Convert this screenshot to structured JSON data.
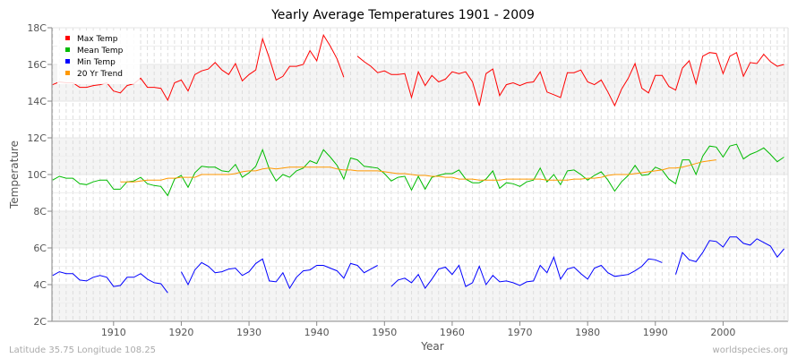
{
  "chart_data": {
    "type": "line",
    "title": "Yearly Average Temperatures 1901 - 2009",
    "xlabel": "Year",
    "ylabel": "Temperature",
    "xlim": [
      1901,
      2009
    ],
    "ylim": [
      2,
      18
    ],
    "x_ticks": [
      1910,
      1920,
      1930,
      1940,
      1950,
      1960,
      1970,
      1980,
      1990,
      2000
    ],
    "y_ticks": [
      "2C",
      "4C",
      "6C",
      "8C",
      "10C",
      "12C",
      "14C",
      "16C",
      "18C"
    ],
    "grid": true,
    "legend_placement": "top-left",
    "series": [
      {
        "name": "Max Temp",
        "color": "#ff0000",
        "start_year": 1901,
        "values": [
          14.9,
          15.05,
          15.0,
          15.0,
          14.75,
          14.75,
          14.85,
          14.9,
          15.0,
          14.55,
          14.45,
          14.85,
          14.95,
          15.25,
          14.75,
          14.75,
          14.7,
          14.05,
          15.0,
          15.15,
          14.55,
          15.45,
          15.65,
          15.75,
          16.1,
          15.7,
          15.45,
          16.05,
          15.1,
          15.45,
          15.7,
          17.4,
          16.35,
          15.15,
          15.35,
          15.9,
          15.9,
          16.0,
          16.75,
          16.2,
          17.6,
          17.0,
          16.3,
          15.3,
          null,
          16.45,
          16.15,
          15.9,
          15.55,
          15.65,
          15.45,
          15.45,
          15.5,
          14.2,
          15.6,
          14.85,
          15.4,
          15.05,
          15.2,
          15.6,
          15.5,
          15.6,
          15.05,
          13.75,
          15.5,
          15.75,
          14.3,
          14.9,
          15.0,
          14.85,
          15.0,
          15.05,
          15.6,
          14.5,
          14.35,
          14.2,
          15.55,
          15.55,
          15.7,
          15.05,
          14.9,
          15.15,
          14.5,
          13.75,
          14.65,
          15.25,
          16.05,
          14.7,
          14.45,
          15.4,
          15.4,
          14.8,
          14.6,
          15.8,
          16.2,
          14.95,
          16.45,
          16.65,
          16.6,
          15.5,
          16.45,
          16.65,
          15.35,
          16.1,
          16.05,
          16.55,
          16.15,
          15.9,
          16.0
        ]
      },
      {
        "name": "Mean Temp",
        "color": "#00bb00",
        "start_year": 1901,
        "values": [
          9.7,
          9.9,
          9.8,
          9.8,
          9.5,
          9.45,
          9.6,
          9.7,
          9.7,
          9.2,
          9.2,
          9.6,
          9.65,
          9.85,
          9.5,
          9.4,
          9.35,
          8.85,
          9.75,
          9.95,
          9.3,
          10.1,
          10.45,
          10.4,
          10.4,
          10.2,
          10.15,
          10.55,
          9.85,
          10.1,
          10.45,
          11.35,
          10.3,
          9.65,
          10.0,
          9.85,
          10.2,
          10.35,
          10.75,
          10.6,
          11.35,
          10.95,
          10.5,
          9.75,
          10.9,
          10.8,
          10.45,
          10.4,
          10.35,
          10.05,
          9.65,
          9.85,
          9.9,
          9.15,
          9.9,
          9.2,
          9.85,
          9.95,
          10.05,
          10.05,
          10.25,
          9.75,
          9.55,
          9.55,
          9.75,
          10.2,
          9.25,
          9.55,
          9.5,
          9.35,
          9.6,
          9.7,
          10.35,
          9.6,
          10.0,
          9.45,
          10.2,
          10.25,
          10.0,
          9.7,
          9.95,
          10.15,
          9.7,
          9.1,
          9.6,
          9.95,
          10.5,
          9.95,
          10.0,
          10.4,
          10.25,
          9.75,
          9.5,
          10.8,
          10.8,
          10.0,
          11.0,
          11.55,
          11.5,
          10.95,
          11.55,
          11.65,
          10.85,
          11.1,
          11.25,
          11.45,
          11.1,
          10.7,
          10.95
        ]
      },
      {
        "name": "Min Temp",
        "color": "#0000ff",
        "start_year": 1901,
        "values": [
          4.5,
          4.7,
          4.6,
          4.6,
          4.25,
          4.2,
          4.4,
          4.5,
          4.4,
          3.9,
          3.95,
          4.4,
          4.4,
          4.6,
          4.3,
          4.1,
          4.05,
          3.55,
          null,
          4.7,
          4.0,
          4.8,
          5.2,
          5.0,
          4.65,
          4.7,
          4.85,
          4.9,
          4.5,
          4.7,
          5.15,
          5.4,
          4.2,
          4.15,
          4.65,
          3.8,
          4.4,
          4.75,
          4.8,
          5.05,
          5.05,
          4.9,
          4.75,
          4.35,
          5.15,
          5.05,
          4.65,
          4.85,
          5.05,
          null,
          3.9,
          4.25,
          4.35,
          4.1,
          4.55,
          3.8,
          4.3,
          4.85,
          4.95,
          4.55,
          5.05,
          3.9,
          4.1,
          5.0,
          4.0,
          4.5,
          4.15,
          4.2,
          4.1,
          3.95,
          4.15,
          4.2,
          5.05,
          4.65,
          5.5,
          4.3,
          4.85,
          4.95,
          4.6,
          4.3,
          4.9,
          5.05,
          4.65,
          4.45,
          4.5,
          4.55,
          4.75,
          5.0,
          5.4,
          5.35,
          5.2,
          null,
          4.55,
          5.75,
          5.35,
          5.25,
          5.75,
          6.4,
          6.35,
          6.05,
          6.6,
          6.6,
          6.25,
          6.15,
          6.5,
          6.3,
          6.1,
          5.5,
          5.95
        ]
      },
      {
        "name": "20 Yr Trend",
        "color": "#ff9900",
        "start_year": 1911,
        "values": [
          9.6,
          9.6,
          9.6,
          9.65,
          9.7,
          9.7,
          9.7,
          9.8,
          9.8,
          9.85,
          9.85,
          9.85,
          10.0,
          10.0,
          10.0,
          10.0,
          10.0,
          10.05,
          10.15,
          10.2,
          10.2,
          10.3,
          10.35,
          10.3,
          10.35,
          10.4,
          10.4,
          10.4,
          10.4,
          10.4,
          10.4,
          10.4,
          10.3,
          10.25,
          10.25,
          10.2,
          10.2,
          10.2,
          10.2,
          10.15,
          10.1,
          10.05,
          10.05,
          10.0,
          9.95,
          9.95,
          9.9,
          9.9,
          9.85,
          9.85,
          9.75,
          9.75,
          9.75,
          9.7,
          9.7,
          9.7,
          9.7,
          9.75,
          9.75,
          9.75,
          9.75,
          9.75,
          9.75,
          9.7,
          9.7,
          9.7,
          9.7,
          9.75,
          9.75,
          9.8,
          9.8,
          9.85,
          9.95,
          10.0,
          10.0,
          10.0,
          10.05,
          10.1,
          10.15,
          10.2,
          10.25,
          10.35,
          10.35,
          10.4,
          10.5,
          10.6,
          10.7,
          10.75,
          10.8
        ]
      }
    ]
  },
  "footer": {
    "location": "Latitude 35.75 Longitude 108.25",
    "site": "worldspecies.org"
  }
}
